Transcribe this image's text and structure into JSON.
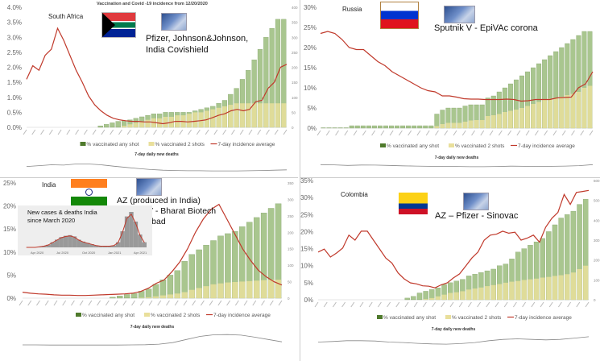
{
  "title": "Vaccination and Covid -19 incidence from 12/20/2020",
  "legend": {
    "any": "% vaccinated any shot",
    "two": "% vaccinated 2 shots",
    "incidence": "7-day incidence average"
  },
  "deaths_title": "7-day daily new deaths",
  "colors": {
    "any": "#8db46a",
    "any_edge": "#4f7a2c",
    "two": "#e9df9b",
    "line": "#c0392b",
    "deaths": "#888888"
  },
  "panels": [
    {
      "country": "South Africa",
      "vaccines": [
        "Pfizer, Johnson&Johnson,",
        "India Covishield"
      ]
    },
    {
      "country": "Russia",
      "vaccines": [
        "Sputnik V - EpiVAc corona"
      ]
    },
    {
      "country": "India",
      "vaccines": [
        "AZ (produced in India)",
        "Sputnik V - Bharat Biotech",
        "Hyderarabad"
      ],
      "inset": {
        "title": [
          "New cases & deaths India",
          "since March 2020"
        ],
        "ticks": [
          "Apr 2020",
          "Jul 2020",
          "Oct 2020",
          "Jan 2021",
          "Apr 2021"
        ]
      }
    },
    {
      "country": "Colombia",
      "vaccines": [
        "AZ – Pfizer - Sinovac"
      ]
    }
  ],
  "chart_data": [
    {
      "type": "bar+line",
      "country": "South Africa",
      "ylabel_left": "% vaccinated",
      "ylabel_right": "7-day incidence",
      "ylim_left": [
        0,
        4
      ],
      "ytick_step_left": 0.5,
      "ylim_right": [
        0,
        400
      ],
      "ytick_step_right": 50,
      "line_axis": "right",
      "any_shot": [
        0,
        0,
        0,
        0,
        0,
        0,
        0,
        0,
        0,
        0,
        0,
        0,
        0.05,
        0.1,
        0.15,
        0.2,
        0.22,
        0.25,
        0.3,
        0.35,
        0.4,
        0.45,
        0.45,
        0.5,
        0.5,
        0.5,
        0.5,
        0.5,
        0.55,
        0.6,
        0.65,
        0.7,
        0.8,
        0.9,
        1.1,
        1.3,
        1.6,
        1.9,
        2.25,
        2.6,
        3.0,
        3.3,
        3.6,
        3.6
      ],
      "two_shots": [
        0,
        0,
        0,
        0,
        0,
        0,
        0,
        0,
        0,
        0,
        0,
        0,
        0,
        0,
        0,
        0,
        0.05,
        0.1,
        0.15,
        0.2,
        0.25,
        0.3,
        0.3,
        0.35,
        0.35,
        0.4,
        0.4,
        0.45,
        0.5,
        0.5,
        0.55,
        0.6,
        0.65,
        0.7,
        0.75,
        0.8,
        0.8,
        0.8,
        0.8,
        0.8,
        0.8,
        0.8,
        0.8,
        0.8
      ],
      "incidence": [
        160,
        205,
        190,
        240,
        260,
        330,
        290,
        240,
        190,
        150,
        105,
        75,
        55,
        40,
        30,
        25,
        22,
        20,
        20,
        18,
        18,
        15,
        12,
        15,
        20,
        20,
        18,
        20,
        22,
        25,
        32,
        40,
        45,
        55,
        60,
        55,
        60,
        85,
        90,
        130,
        150,
        200,
        210
      ],
      "deaths": [
        40,
        45,
        50,
        48,
        55,
        55,
        50,
        42,
        35,
        28,
        22,
        18,
        16,
        15,
        15,
        14,
        14,
        14,
        15,
        16,
        18,
        20
      ]
    },
    {
      "type": "bar+line",
      "country": "Russia",
      "ylabel_left": "% vaccinated",
      "ylim_left": [
        0,
        30
      ],
      "ytick_step_left": 5,
      "line_axis": "left",
      "any_shot": [
        0.1,
        0.1,
        0.1,
        0.1,
        0.1,
        0.6,
        0.6,
        0.6,
        0.6,
        0.6,
        0.6,
        0.6,
        0.6,
        0.6,
        0.6,
        0.6,
        0.6,
        0.6,
        0.6,
        0.6,
        3.5,
        4.5,
        5,
        5,
        5,
        5.5,
        5.8,
        5.8,
        5.8,
        7.5,
        8,
        9,
        10,
        11,
        12,
        13,
        14,
        15,
        16,
        17,
        18,
        19,
        20,
        21,
        22,
        23,
        24,
        24
      ],
      "two_shots": [
        0,
        0,
        0,
        0,
        0,
        0,
        0,
        0,
        0,
        0,
        0,
        0,
        0,
        0,
        0,
        0,
        0,
        0,
        0,
        0,
        0.5,
        1,
        1.3,
        1.3,
        1.3,
        1.6,
        1.9,
        2,
        2,
        3,
        3.2,
        3.5,
        4,
        4.3,
        4.6,
        5,
        5.5,
        6,
        6.5,
        7,
        7.3,
        7.5,
        7.8,
        8.2,
        8.5,
        9,
        10,
        10.5
      ],
      "incidence": [
        23.5,
        24,
        23.5,
        22,
        20,
        19.5,
        19.5,
        18,
        16.5,
        15.5,
        14,
        13,
        12,
        11,
        10,
        9.3,
        9,
        8,
        8,
        7.7,
        7.3,
        7.2,
        7.2,
        7.1,
        7.1,
        7.1,
        7.2,
        7.1,
        6.7,
        6.8,
        7.1,
        7.1,
        7.1,
        7.5,
        7.6,
        7.7,
        10,
        11,
        14
      ],
      "deaths": [
        60,
        58,
        52,
        56,
        55,
        52,
        48,
        46,
        44,
        42,
        42,
        40,
        40,
        42,
        45,
        44,
        42,
        44,
        46,
        50,
        60
      ]
    },
    {
      "type": "bar+line",
      "country": "India",
      "ylabel_left": "% vaccinated",
      "ylabel_right": "7-day incidence",
      "ylim_left": [
        0,
        25
      ],
      "ytick_step_left": 5,
      "ylim_right": [
        0,
        350
      ],
      "ytick_step_right": 50,
      "line_axis": "right",
      "any_shot": [
        0,
        0,
        0,
        0,
        0,
        0,
        0,
        0,
        0,
        0,
        0,
        0,
        0.2,
        0.5,
        0.8,
        1,
        1.5,
        2,
        3,
        4,
        5,
        6,
        8,
        9.5,
        10.5,
        11.5,
        12.5,
        13.5,
        14,
        14.5,
        15.5,
        16.5,
        17.5,
        18.5,
        19.5,
        20.5
      ],
      "two_shots": [
        0,
        0,
        0,
        0,
        0,
        0,
        0,
        0,
        0,
        0,
        0,
        0,
        0,
        0,
        0,
        0,
        0.1,
        0.2,
        0.4,
        0.6,
        0.8,
        1,
        1.3,
        1.8,
        2.2,
        2.6,
        3,
        3.2,
        3.4,
        3.5,
        3.6,
        3.7,
        3.8,
        3.9,
        4,
        4
      ],
      "incidence": [
        18,
        15,
        13,
        12,
        10,
        9,
        9,
        8,
        8,
        9,
        10,
        11,
        12,
        13,
        15,
        20,
        30,
        45,
        55,
        80,
        110,
        150,
        200,
        240,
        270,
        285,
        240,
        195,
        150,
        115,
        85,
        65,
        50,
        40
      ],
      "deaths": [
        5,
        5,
        4,
        4,
        4,
        4,
        4,
        4,
        5,
        6,
        10,
        20,
        40,
        60,
        70,
        72,
        68,
        55,
        40,
        25
      ]
    },
    {
      "type": "bar+line",
      "country": "Colombia",
      "ylabel_left": "% vaccinated",
      "ylabel_right": "7-day incidence",
      "ylim_left": [
        0,
        35
      ],
      "ytick_step_left": 5,
      "ylim_right": [
        0,
        600
      ],
      "ytick_step_right": 100,
      "line_axis": "right",
      "any_shot": [
        0,
        0,
        0,
        0,
        0,
        0,
        0,
        0,
        0,
        0,
        0,
        0,
        0,
        0,
        0.5,
        1,
        2,
        2.5,
        3,
        3.5,
        4.5,
        5,
        5.5,
        6,
        7,
        7.5,
        8,
        8.5,
        9,
        10,
        10.5,
        12,
        14,
        15,
        16,
        17,
        18,
        20,
        22,
        24,
        25,
        26,
        28,
        29.5
      ],
      "two_shots": [
        0,
        0,
        0,
        0,
        0,
        0,
        0,
        0,
        0,
        0,
        0,
        0,
        0,
        0,
        0,
        0,
        0,
        0.2,
        0.5,
        1,
        1.5,
        2,
        2.2,
        2.5,
        3,
        3.3,
        3.6,
        4,
        4.3,
        4.6,
        5,
        5.3,
        5.5,
        5.8,
        6,
        6.2,
        6.5,
        6.7,
        7,
        7.2,
        7.5,
        8,
        9,
        10
      ],
      "incidence": [
        240,
        255,
        215,
        235,
        260,
        325,
        300,
        345,
        345,
        300,
        255,
        210,
        185,
        135,
        105,
        85,
        80,
        70,
        68,
        60,
        75,
        85,
        110,
        130,
        170,
        210,
        240,
        300,
        325,
        330,
        345,
        335,
        340,
        300,
        310,
        325,
        290,
        365,
        410,
        440,
        530,
        480,
        540,
        545,
        550
      ],
      "deaths": [
        20,
        22,
        25,
        25,
        24,
        20,
        18,
        15,
        13,
        12,
        14,
        18,
        25,
        30,
        32,
        30,
        28,
        30,
        35,
        40
      ]
    }
  ]
}
